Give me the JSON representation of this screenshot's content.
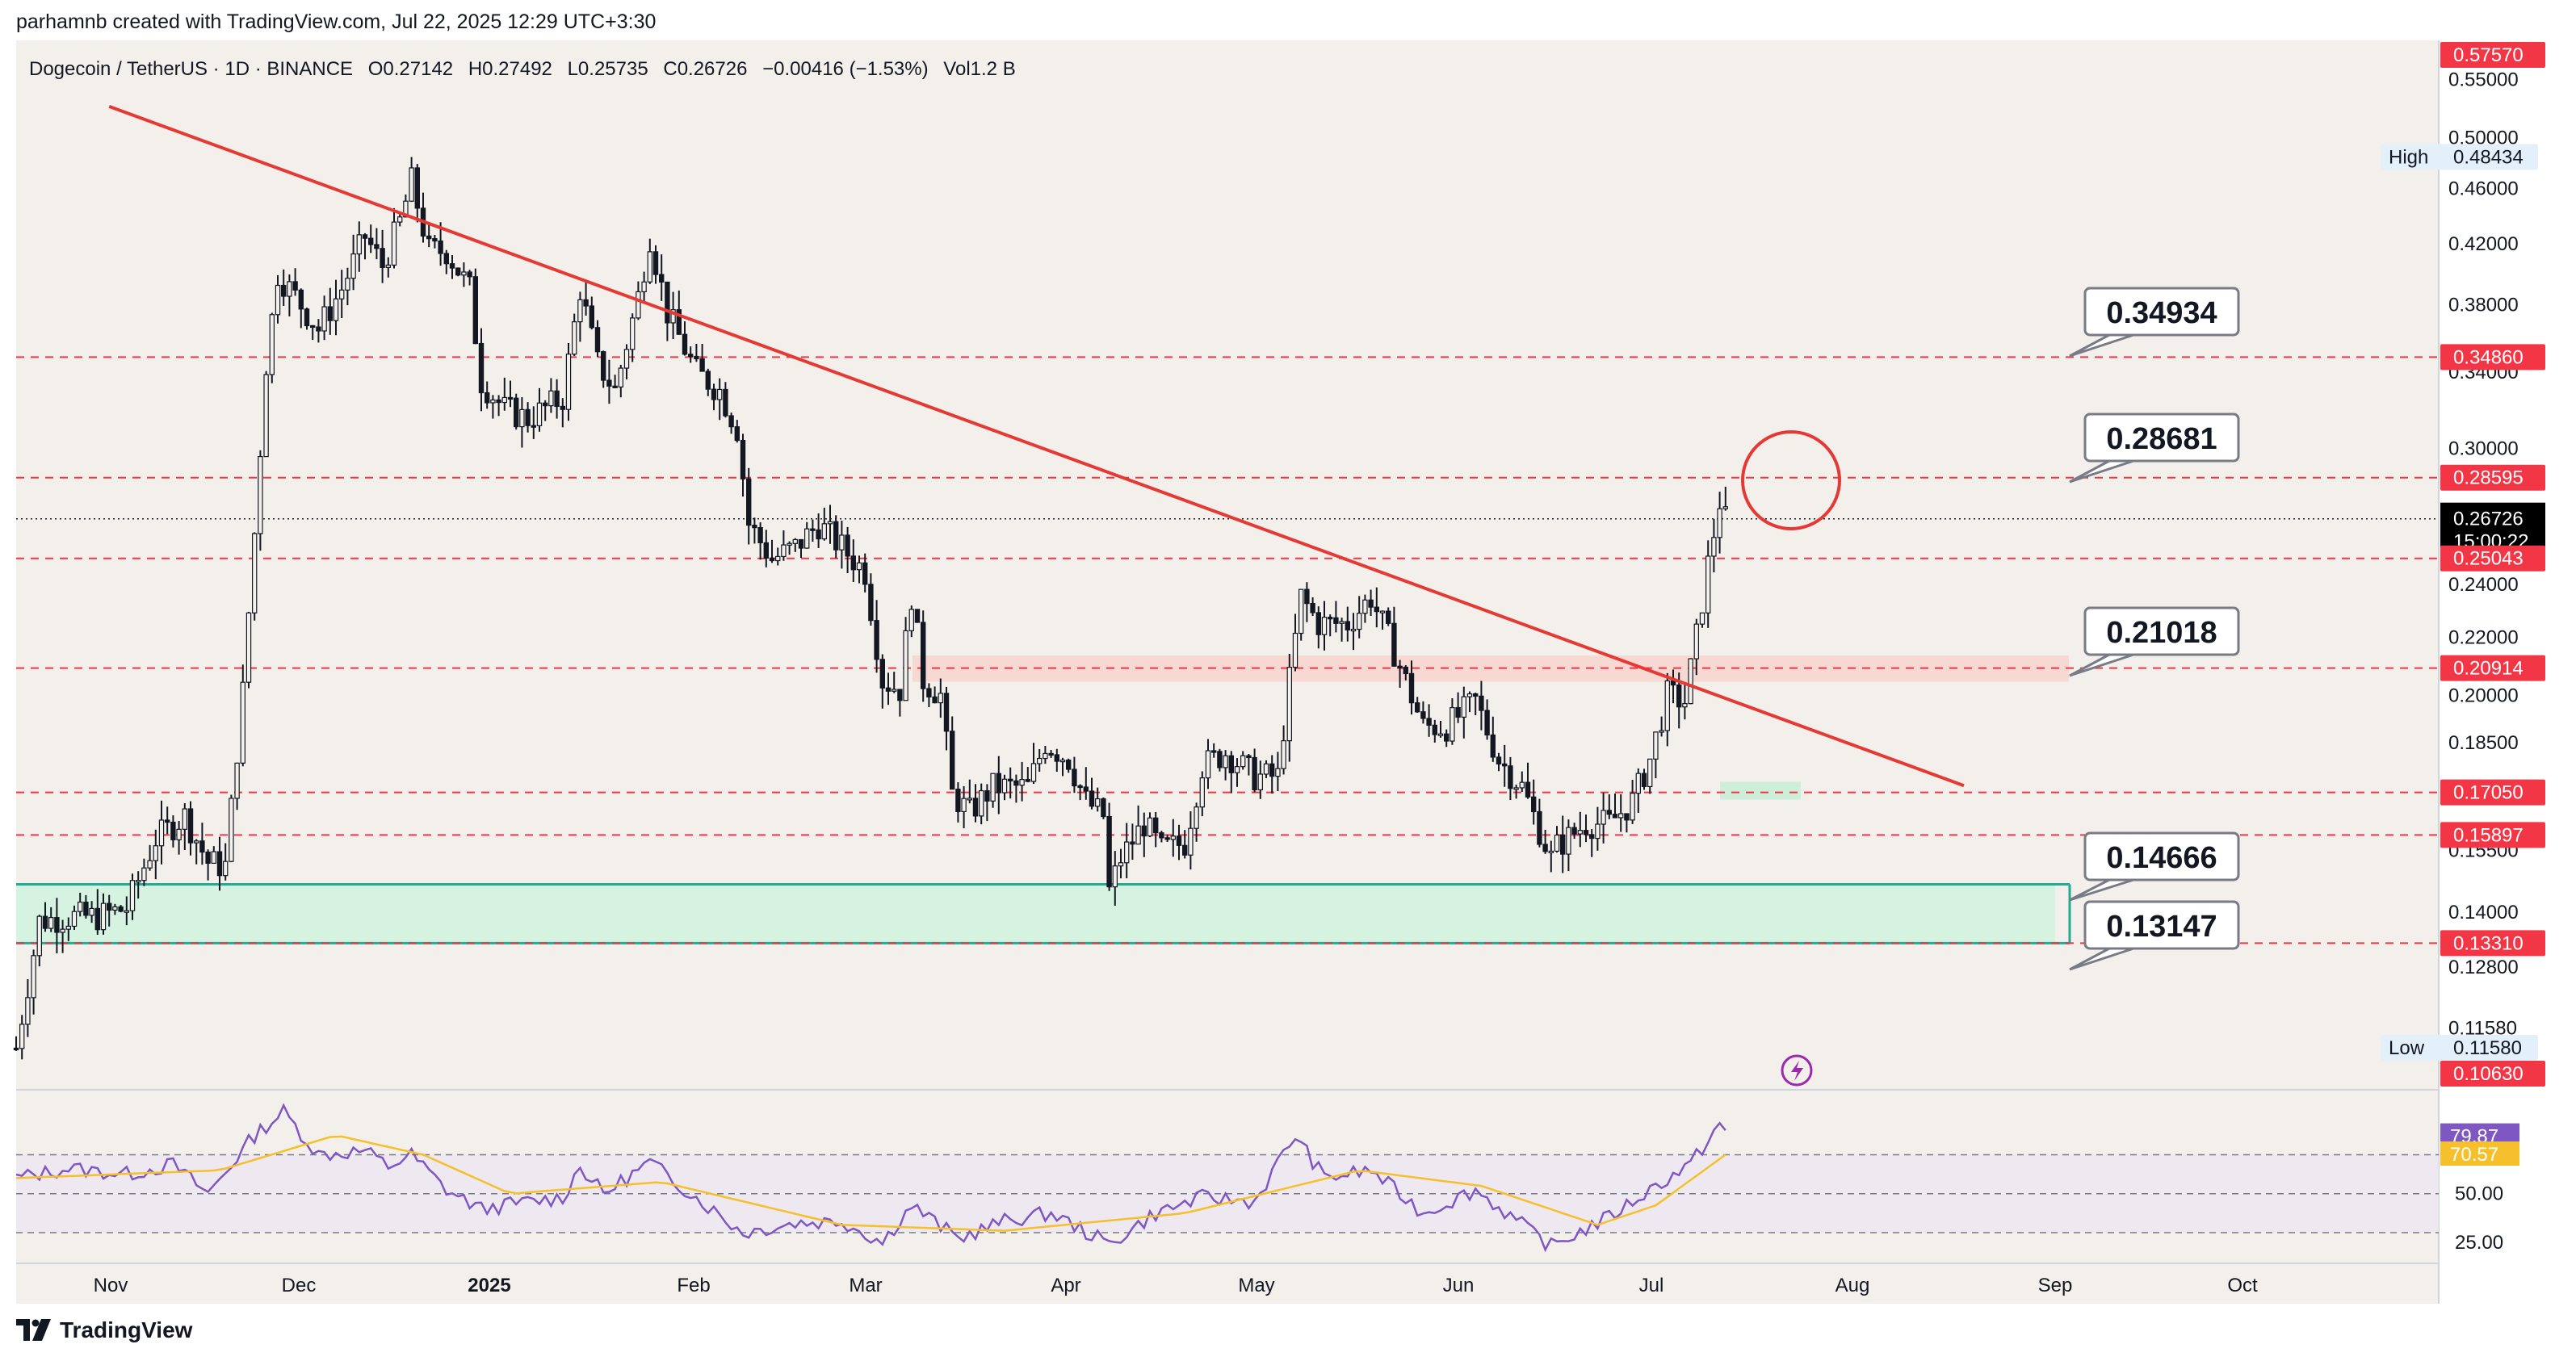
{
  "header": {
    "credit": "parhamnb created with TradingView.com, Jul 22, 2025 12:29 UTC+3:30"
  },
  "symbol_info": {
    "name": "Dogecoin / TetherUS · 1D · BINANCE",
    "open": "O0.27142",
    "high": "H0.27492",
    "low": "L0.25735",
    "close": "C0.26726",
    "change": "−0.00416 (−1.53%)",
    "volume": "Vol1.2 B"
  },
  "footer": {
    "brand": "TradingView"
  },
  "colors": {
    "background": "#f3f0eb",
    "candle": "#131722",
    "trendline": "#e53935",
    "dashed_level": "#f23645",
    "green_zone": "#d6f2e0",
    "green_border": "#22ab94",
    "pink_zone": "#f7d3cf",
    "rsi_line": "#7e57c2",
    "rsi_ma": "#f5c02b",
    "rsi_band": "#ece6f2",
    "price_tag": "#000000",
    "level_tag": "#f23645"
  },
  "chart_data": {
    "type": "candlestick",
    "y_scale": "log",
    "ylim": [
      0.106,
      0.576
    ],
    "x_axis_labels": [
      "Nov",
      "Dec",
      "2025",
      "Feb",
      "Mar",
      "Apr",
      "May",
      "Jun",
      "Jul",
      "Aug",
      "Sep",
      "Oct"
    ],
    "y_tick_labels": [
      "0.55000",
      "0.50000",
      "0.46000",
      "0.42000",
      "0.38000",
      "0.34000",
      "0.30000",
      "0.24000",
      "0.22000",
      "0.20000",
      "0.18500",
      "0.15500",
      "0.14000",
      "0.12800",
      "0.11580"
    ],
    "price_scale_tags": [
      {
        "value": "0.57570",
        "kind": "level"
      },
      {
        "value": "0.48434",
        "kind": "high",
        "label": "High"
      },
      {
        "value": "0.34860",
        "kind": "level"
      },
      {
        "value": "0.28595",
        "kind": "level"
      },
      {
        "value": "0.26726",
        "kind": "current",
        "countdown": "15:00:22"
      },
      {
        "value": "0.25043",
        "kind": "level"
      },
      {
        "value": "0.20914",
        "kind": "level"
      },
      {
        "value": "0.17050",
        "kind": "level"
      },
      {
        "value": "0.15897",
        "kind": "level"
      },
      {
        "value": "0.13310",
        "kind": "level"
      },
      {
        "value": "0.11580",
        "kind": "low",
        "label": "Low"
      },
      {
        "value": "0.10630",
        "kind": "level"
      }
    ],
    "horizontal_levels": [
      0.3486,
      0.28595,
      0.25043,
      0.20914,
      0.1705,
      0.15897,
      0.1331
    ],
    "callouts": [
      "0.34934",
      "0.28681",
      "0.21018",
      "0.14666",
      "0.13147"
    ],
    "green_zone": [
      0.1331,
      0.1466
    ],
    "pink_zone": [
      0.2045,
      0.2135
    ],
    "trendline": {
      "start": {
        "date": "2024-10-17",
        "price": 0.5262
      },
      "end": {
        "date": "2025-09-01",
        "price": 0.1724
      }
    },
    "ohlc_anchors": [
      [
        "2024-10-01",
        0.112
      ],
      [
        "2024-10-05",
        0.138
      ],
      [
        "2024-10-10",
        0.139
      ],
      [
        "2024-10-15",
        0.139
      ],
      [
        "2024-10-20",
        0.141
      ],
      [
        "2024-10-25",
        0.158
      ],
      [
        "2024-10-30",
        0.164
      ],
      [
        "2024-11-03",
        0.152
      ],
      [
        "2024-11-06",
        0.151
      ],
      [
        "2024-11-09",
        0.201
      ],
      [
        "2024-11-11",
        0.261
      ],
      [
        "2024-11-13",
        0.345
      ],
      [
        "2024-11-15",
        0.4
      ],
      [
        "2024-11-18",
        0.385
      ],
      [
        "2024-11-22",
        0.365
      ],
      [
        "2024-11-26",
        0.39
      ],
      [
        "2024-11-30",
        0.425
      ],
      [
        "2024-12-03",
        0.405
      ],
      [
        "2024-12-06",
        0.435
      ],
      [
        "2024-12-08",
        0.465
      ],
      [
        "2024-12-11",
        0.415
      ],
      [
        "2024-12-14",
        0.415
      ],
      [
        "2024-12-18",
        0.39
      ],
      [
        "2024-12-20",
        0.335
      ],
      [
        "2024-12-24",
        0.32
      ],
      [
        "2024-12-28",
        0.315
      ],
      [
        "2025-01-03",
        0.326
      ],
      [
        "2025-01-06",
        0.39
      ],
      [
        "2025-01-09",
        0.345
      ],
      [
        "2025-01-12",
        0.33
      ],
      [
        "2025-01-16",
        0.385
      ],
      [
        "2025-01-18",
        0.425
      ],
      [
        "2025-01-21",
        0.375
      ],
      [
        "2025-01-26",
        0.34
      ],
      [
        "2025-01-30",
        0.33
      ],
      [
        "2025-02-02",
        0.31
      ],
      [
        "2025-02-04",
        0.265
      ],
      [
        "2025-02-08",
        0.25
      ],
      [
        "2025-02-12",
        0.255
      ],
      [
        "2025-02-16",
        0.265
      ],
      [
        "2025-02-20",
        0.255
      ],
      [
        "2025-02-24",
        0.245
      ],
      [
        "2025-02-27",
        0.205
      ],
      [
        "2025-03-02",
        0.202
      ],
      [
        "2025-03-04",
        0.236
      ],
      [
        "2025-03-06",
        0.205
      ],
      [
        "2025-03-09",
        0.2
      ],
      [
        "2025-03-11",
        0.17
      ],
      [
        "2025-03-14",
        0.165
      ],
      [
        "2025-03-18",
        0.172
      ],
      [
        "2025-03-24",
        0.172
      ],
      [
        "2025-03-27",
        0.185
      ],
      [
        "2025-03-31",
        0.18
      ],
      [
        "2025-04-03",
        0.168
      ],
      [
        "2025-04-06",
        0.164
      ],
      [
        "2025-04-07",
        0.145
      ],
      [
        "2025-04-09",
        0.153
      ],
      [
        "2025-04-13",
        0.162
      ],
      [
        "2025-04-16",
        0.155
      ],
      [
        "2025-04-20",
        0.157
      ],
      [
        "2025-04-23",
        0.178
      ],
      [
        "2025-04-27",
        0.182
      ],
      [
        "2025-05-02",
        0.175
      ],
      [
        "2025-05-06",
        0.175
      ],
      [
        "2025-05-08",
        0.205
      ],
      [
        "2025-05-10",
        0.235
      ],
      [
        "2025-05-13",
        0.225
      ],
      [
        "2025-05-18",
        0.225
      ],
      [
        "2025-05-22",
        0.235
      ],
      [
        "2025-05-26",
        0.215
      ],
      [
        "2025-05-31",
        0.19
      ],
      [
        "2025-06-04",
        0.19
      ],
      [
        "2025-06-09",
        0.198
      ],
      [
        "2025-06-13",
        0.18
      ],
      [
        "2025-06-17",
        0.172
      ],
      [
        "2025-06-22",
        0.153
      ],
      [
        "2025-06-23",
        0.156
      ],
      [
        "2025-06-28",
        0.162
      ],
      [
        "2025-07-02",
        0.162
      ],
      [
        "2025-07-06",
        0.168
      ],
      [
        "2025-07-09",
        0.18
      ],
      [
        "2025-07-12",
        0.2
      ],
      [
        "2025-07-15",
        0.198
      ],
      [
        "2025-07-17",
        0.22
      ],
      [
        "2025-07-19",
        0.248
      ],
      [
        "2025-07-21",
        0.275
      ],
      [
        "2025-07-22",
        0.267
      ]
    ]
  },
  "rsi": {
    "labels": [
      "79.87",
      "70.57",
      "50.00",
      "25.00"
    ],
    "value_tags": [
      {
        "value": "79.87",
        "kind": "rsi"
      },
      {
        "value": "70.57",
        "kind": "ma"
      }
    ],
    "ylim": [
      18,
      100
    ],
    "levels": [
      70,
      50,
      30
    ],
    "anchors": [
      [
        "2024-10-01",
        58
      ],
      [
        "2024-10-10",
        63
      ],
      [
        "2024-10-20",
        60
      ],
      [
        "2024-10-28",
        65
      ],
      [
        "2024-11-03",
        50
      ],
      [
        "2024-11-11",
        80
      ],
      [
        "2024-11-16",
        92
      ],
      [
        "2024-11-22",
        70
      ],
      [
        "2024-11-30",
        72
      ],
      [
        "2024-12-04",
        64
      ],
      [
        "2024-12-08",
        70
      ],
      [
        "2024-12-14",
        52
      ],
      [
        "2024-12-20",
        42
      ],
      [
        "2024-12-26",
        45
      ],
      [
        "2025-01-03",
        48
      ],
      [
        "2025-01-06",
        64
      ],
      [
        "2025-01-10",
        50
      ],
      [
        "2025-01-18",
        66
      ],
      [
        "2025-01-26",
        48
      ],
      [
        "2025-02-03",
        30
      ],
      [
        "2025-02-12",
        35
      ],
      [
        "2025-02-20",
        36
      ],
      [
        "2025-02-27",
        25
      ],
      [
        "2025-03-04",
        44
      ],
      [
        "2025-03-12",
        27
      ],
      [
        "2025-03-20",
        36
      ],
      [
        "2025-03-28",
        40
      ],
      [
        "2025-04-07",
        24
      ],
      [
        "2025-04-15",
        40
      ],
      [
        "2025-04-23",
        48
      ],
      [
        "2025-05-02",
        46
      ],
      [
        "2025-05-09",
        80
      ],
      [
        "2025-05-14",
        58
      ],
      [
        "2025-05-22",
        62
      ],
      [
        "2025-05-31",
        40
      ],
      [
        "2025-06-09",
        52
      ],
      [
        "2025-06-17",
        34
      ],
      [
        "2025-06-22",
        23
      ],
      [
        "2025-07-02",
        38
      ],
      [
        "2025-07-10",
        54
      ],
      [
        "2025-07-16",
        65
      ],
      [
        "2025-07-21",
        86
      ],
      [
        "2025-07-22",
        80
      ]
    ],
    "ma_anchors": [
      [
        "2024-10-01",
        58
      ],
      [
        "2024-11-05",
        62
      ],
      [
        "2024-11-25",
        80
      ],
      [
        "2024-12-10",
        70
      ],
      [
        "2024-12-25",
        50
      ],
      [
        "2025-01-20",
        56
      ],
      [
        "2025-02-20",
        34
      ],
      [
        "2025-03-20",
        31
      ],
      [
        "2025-04-20",
        40
      ],
      [
        "2025-05-20",
        62
      ],
      [
        "2025-06-10",
        54
      ],
      [
        "2025-06-30",
        34
      ],
      [
        "2025-07-10",
        44
      ],
      [
        "2025-07-22",
        70
      ]
    ]
  },
  "misc": {
    "flash_icon": "lightning-icon",
    "highlight_circle": "red-circle-highlight"
  }
}
